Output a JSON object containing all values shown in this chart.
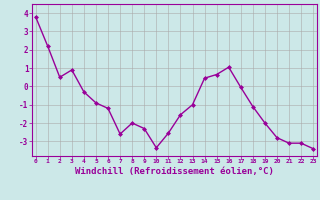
{
  "x": [
    0,
    1,
    2,
    3,
    4,
    5,
    6,
    7,
    8,
    9,
    10,
    11,
    12,
    13,
    14,
    15,
    16,
    17,
    18,
    19,
    20,
    21,
    22,
    23
  ],
  "y": [
    3.8,
    2.2,
    0.5,
    0.9,
    -0.3,
    -0.9,
    -1.2,
    -2.6,
    -2.0,
    -2.3,
    -3.35,
    -2.55,
    -1.55,
    -1.0,
    0.45,
    0.65,
    1.05,
    -0.05,
    -1.1,
    -2.0,
    -2.8,
    -3.1,
    -3.1,
    -3.4
  ],
  "line_color": "#990099",
  "marker": "D",
  "markersize": 2.0,
  "linewidth": 1.0,
  "xlabel": "Windchill (Refroidissement éolien,°C)",
  "xlabel_fontsize": 6.5,
  "xtick_labels": [
    "0",
    "1",
    "2",
    "3",
    "4",
    "5",
    "6",
    "7",
    "8",
    "9",
    "10",
    "11",
    "12",
    "13",
    "14",
    "15",
    "16",
    "17",
    "18",
    "19",
    "20",
    "21",
    "22",
    "23"
  ],
  "yticks": [
    -3,
    -2,
    -1,
    0,
    1,
    2,
    3,
    4
  ],
  "ylim": [
    -3.8,
    4.5
  ],
  "xlim": [
    -0.3,
    23.3
  ],
  "bg_color": "#cce8e8",
  "grid_color": "#aaaaaa",
  "tick_color": "#990099",
  "label_color": "#990099"
}
